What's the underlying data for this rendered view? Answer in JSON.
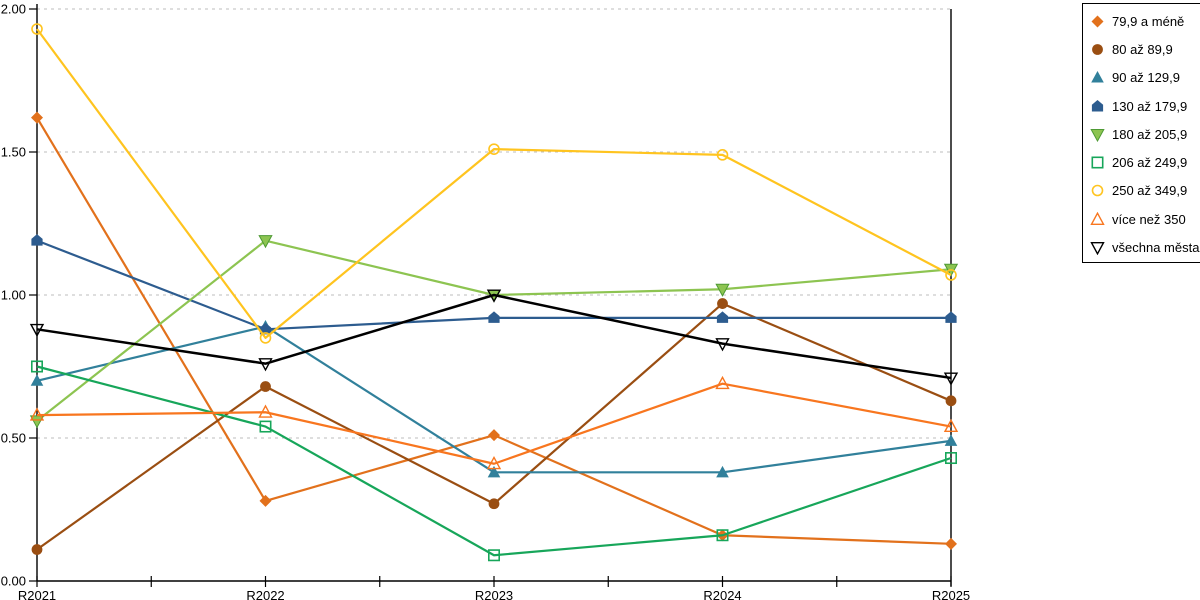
{
  "chart_data": {
    "type": "line",
    "title": "",
    "categories": [
      "R2021",
      "R2022",
      "R2023",
      "R2024",
      "R2025"
    ],
    "y_ticks": [
      "0.00",
      "0.50",
      "1.00",
      "1.50",
      "2.00"
    ],
    "ylim": [
      0,
      2.0
    ],
    "grid": "horizontal-dashed",
    "legend_position": "top-right",
    "series": [
      {
        "name": "79,9 a méně",
        "marker": "diamond",
        "color": "#E2711C",
        "values": [
          1.62,
          0.28,
          0.51,
          0.16,
          0.13
        ]
      },
      {
        "name": "80 až 89,9",
        "marker": "circle",
        "color": "#9A4E12",
        "values": [
          0.11,
          0.68,
          0.27,
          0.97,
          0.63
        ]
      },
      {
        "name": "90 až 129,9",
        "marker": "triangle",
        "color": "#31809B",
        "values": [
          0.7,
          0.89,
          0.38,
          0.38,
          0.49
        ]
      },
      {
        "name": "130 až 179,9",
        "marker": "pentagon",
        "color": "#2D5C8F",
        "values": [
          1.19,
          0.88,
          0.92,
          0.92,
          0.92
        ]
      },
      {
        "name": "180 až 205,9",
        "marker": "triangle-down",
        "color": "#8DC451",
        "marker_border": "#4E9A34",
        "values": [
          0.56,
          1.19,
          1.0,
          1.02,
          1.09
        ]
      },
      {
        "name": "206 až 249,9",
        "marker": "square-open",
        "color": "#17A65A",
        "values": [
          0.75,
          0.54,
          0.09,
          0.16,
          0.43
        ]
      },
      {
        "name": "250 až 349,9",
        "marker": "circle-open",
        "color": "#FFC41F",
        "values": [
          1.93,
          0.85,
          1.51,
          1.49,
          1.07
        ]
      },
      {
        "name": "více než 350",
        "marker": "triangle-open",
        "color": "#F8761F",
        "values": [
          0.58,
          0.59,
          0.41,
          0.69,
          0.54
        ]
      },
      {
        "name": "všechna města",
        "marker": "triangle-down-open",
        "color": "#000000",
        "line_width": 2.5,
        "values": [
          0.88,
          0.76,
          1.0,
          0.83,
          0.71
        ]
      }
    ]
  },
  "colors": {
    "background": "#FFFFFF",
    "grid": "#BDBDBD",
    "axis": "#000000",
    "legend_border": "#000000"
  }
}
